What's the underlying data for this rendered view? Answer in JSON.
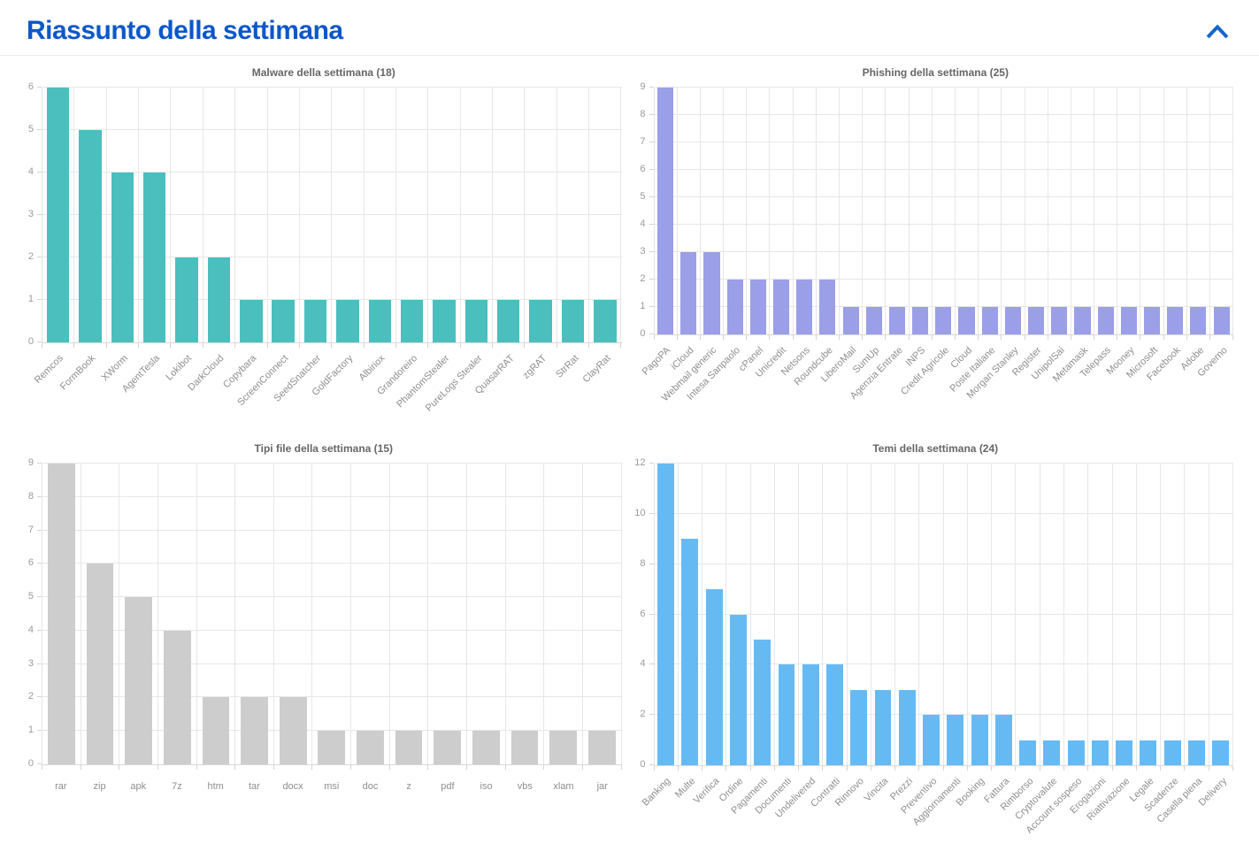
{
  "header": {
    "title": "Riassunto della settimana",
    "collapse_icon": "chevron-up-icon",
    "title_color": "#0b57cb",
    "chevron_color": "#1565cb"
  },
  "chart_data": [
    {
      "id": "malware",
      "type": "bar",
      "title": "Malware della settimana (18)",
      "bar_color": "#4bbebe",
      "categories": [
        "Remcos",
        "FormBook",
        "XWorm",
        "AgentTesla",
        "Lokibot",
        "DarkCloud",
        "Copybara",
        "ScreenConnect",
        "SeedSnatcher",
        "GoldFactory",
        "Albiriox",
        "Grandoreiro",
        "PhantomStealer",
        "PureLogs Stealer",
        "QuasarRAT",
        "zgRAT",
        "StrRat",
        "ClayRat"
      ],
      "values": [
        6,
        5,
        4,
        4,
        2,
        2,
        1,
        1,
        1,
        1,
        1,
        1,
        1,
        1,
        1,
        1,
        1,
        1
      ],
      "ylim": [
        0,
        6
      ],
      "yticks": [
        0,
        1,
        2,
        3,
        4,
        5,
        6
      ],
      "rotated_labels": true,
      "grid": true,
      "legend": "none"
    },
    {
      "id": "phishing",
      "type": "bar",
      "title": "Phishing della settimana (25)",
      "bar_color": "#9b9fe8",
      "categories": [
        "PagoPA",
        "iCloud",
        "Webmail generic",
        "Intesa Sanpaolo",
        "cPanel",
        "Unicredit",
        "Netsons",
        "Roundcube",
        "LiberoMail",
        "SumUp",
        "Agenzia Entrate",
        "INPS",
        "Credit Agricole",
        "Cloud",
        "Poste Italiane",
        "Morgan Stanley",
        "Register",
        "UnipolSai",
        "Metamask",
        "Telepass",
        "Mooney",
        "Microsoft",
        "Facebook",
        "Adobe",
        "Governo"
      ],
      "values": [
        9,
        3,
        3,
        2,
        2,
        2,
        2,
        2,
        1,
        1,
        1,
        1,
        1,
        1,
        1,
        1,
        1,
        1,
        1,
        1,
        1,
        1,
        1,
        1,
        1
      ],
      "ylim": [
        0,
        9
      ],
      "yticks": [
        0,
        1,
        2,
        3,
        4,
        5,
        6,
        7,
        8,
        9
      ],
      "rotated_labels": true,
      "grid": true,
      "legend": "none"
    },
    {
      "id": "filetypes",
      "type": "bar",
      "title": "Tipi file della settimana (15)",
      "bar_color": "#cdcdcd",
      "categories": [
        "rar",
        "zip",
        "apk",
        "7z",
        "htm",
        "tar",
        "docx",
        "msi",
        "doc",
        "z",
        "pdf",
        "iso",
        "vbs",
        "xlam",
        "jar"
      ],
      "values": [
        9,
        6,
        5,
        4,
        2,
        2,
        2,
        1,
        1,
        1,
        1,
        1,
        1,
        1,
        1
      ],
      "ylim": [
        0,
        9
      ],
      "yticks": [
        0,
        1,
        2,
        3,
        4,
        5,
        6,
        7,
        8,
        9
      ],
      "rotated_labels": false,
      "grid": true,
      "legend": "none"
    },
    {
      "id": "temi",
      "type": "bar",
      "title": "Temi della settimana (24)",
      "bar_color": "#66baf4",
      "categories": [
        "Banking",
        "Multe",
        "Verifica",
        "Ordine",
        "Pagamenti",
        "Documenti",
        "Undelivered",
        "Contratti",
        "Rinnovo",
        "Vincita",
        "Prezzi",
        "Preventivo",
        "Aggiornamenti",
        "Booking",
        "Fattura",
        "Rimborso",
        "Cryptovalute",
        "Account sospeso",
        "Erogazioni",
        "Riattivazione",
        "Legale",
        "Scadenze",
        "Casella piena",
        "Delivery"
      ],
      "values": [
        12,
        9,
        7,
        6,
        5,
        4,
        4,
        4,
        3,
        3,
        3,
        2,
        2,
        2,
        2,
        1,
        1,
        1,
        1,
        1,
        1,
        1,
        1,
        1
      ],
      "ylim": [
        0,
        12
      ],
      "yticks": [
        0,
        2,
        4,
        6,
        8,
        10,
        12
      ],
      "rotated_labels": true,
      "grid": true,
      "legend": "none"
    }
  ]
}
